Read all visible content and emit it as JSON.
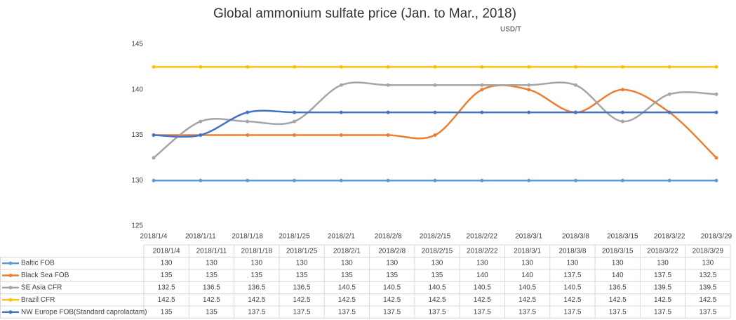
{
  "chart_data": {
    "type": "line",
    "title": "Global ammonium sulfate price (Jan. to Mar., 2018)",
    "y_label": "USD/T",
    "categories": [
      "2018/1/4",
      "2018/1/11",
      "2018/1/18",
      "2018/1/25",
      "2018/2/1",
      "2018/2/8",
      "2018/2/15",
      "2018/2/22",
      "2018/3/1",
      "2018/3/8",
      "2018/3/15",
      "2018/3/22",
      "2018/3/29"
    ],
    "ylim": [
      125,
      145
    ],
    "yticks": [
      125,
      130,
      135,
      140,
      145
    ],
    "grid": false,
    "smooth": true,
    "data_table": true,
    "series": [
      {
        "name": "Baltic FOB",
        "color": "#5b9bd5",
        "values": [
          130,
          130,
          130,
          130,
          130,
          130,
          130,
          130,
          130,
          130,
          130,
          130,
          130
        ]
      },
      {
        "name": "Black Sea FOB",
        "color": "#ed7d31",
        "values": [
          135,
          135,
          135,
          135,
          135,
          135,
          135,
          140,
          140,
          137.5,
          140,
          137.5,
          132.5
        ]
      },
      {
        "name": "SE Asia CFR",
        "color": "#a5a5a5",
        "values": [
          132.5,
          136.5,
          136.5,
          136.5,
          140.5,
          140.5,
          140.5,
          140.5,
          140.5,
          140.5,
          136.5,
          139.5,
          139.5
        ]
      },
      {
        "name": "Brazil CFR",
        "color": "#ffc000",
        "values": [
          142.5,
          142.5,
          142.5,
          142.5,
          142.5,
          142.5,
          142.5,
          142.5,
          142.5,
          142.5,
          142.5,
          142.5,
          142.5
        ]
      },
      {
        "name": "NW Europe FOB(Standard caprolactam)",
        "color": "#4472c4",
        "values": [
          135,
          135,
          137.5,
          137.5,
          137.5,
          137.5,
          137.5,
          137.5,
          137.5,
          137.5,
          137.5,
          137.5,
          137.5
        ]
      }
    ]
  }
}
